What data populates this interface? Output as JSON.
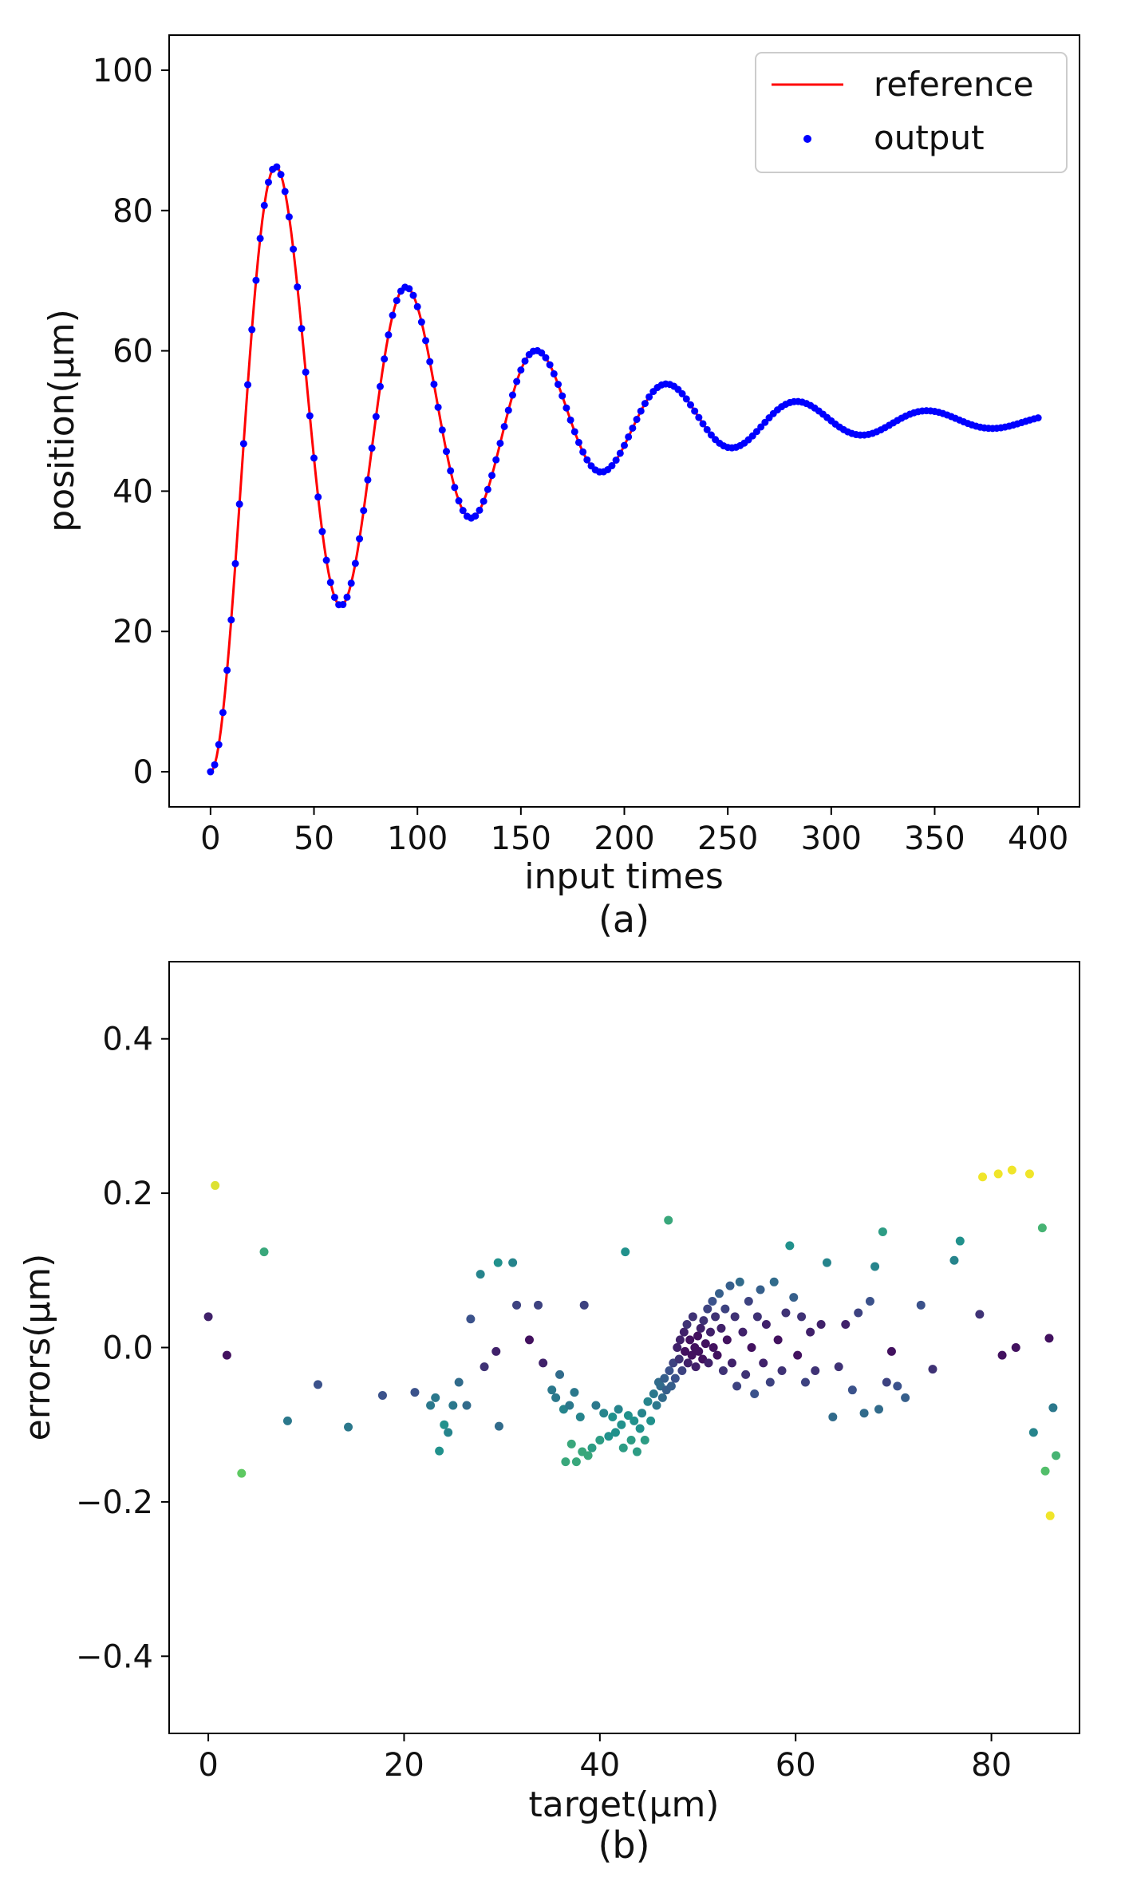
{
  "colors": {
    "reference_line": "#ff0000",
    "output_points": "#0000ff",
    "legend_border": "#cccccc"
  },
  "chart_data": [
    {
      "panel_label": "(a)",
      "type": "line",
      "xlabel": "input times",
      "ylabel": "position(µm)",
      "xlim": [
        -20,
        420
      ],
      "ylim": [
        -5,
        105
      ],
      "xticks": [
        0,
        50,
        100,
        150,
        200,
        250,
        300,
        350,
        400
      ],
      "xtick_labels": [
        "0",
        "50",
        "100",
        "150",
        "200",
        "250",
        "300",
        "350",
        "400"
      ],
      "yticks": [
        0,
        20,
        40,
        60,
        80,
        100
      ],
      "ytick_labels": [
        "0",
        "20",
        "40",
        "60",
        "80",
        "100"
      ],
      "legend": {
        "position": "top-right",
        "entries": [
          "reference",
          "output"
        ]
      },
      "model": {
        "final": 50,
        "amplitude": 50,
        "decay": 0.0102,
        "omega": 0.0998,
        "t_end": 400,
        "step": 2
      },
      "series": [
        {
          "name": "reference",
          "kind": "line",
          "color": "#ff0000"
        },
        {
          "name": "output",
          "kind": "scatter",
          "color": "#0000ff"
        }
      ]
    },
    {
      "panel_label": "(b)",
      "type": "scatter",
      "xlabel": "target(µm)",
      "ylabel": "errors(µm)",
      "xlim": [
        -4,
        89
      ],
      "ylim": [
        -0.5,
        0.5
      ],
      "xticks": [
        0,
        20,
        40,
        60,
        80
      ],
      "xtick_labels": [
        "0",
        "20",
        "40",
        "60",
        "80"
      ],
      "yticks": [
        0.4,
        0.2,
        0.0,
        -0.2,
        -0.4
      ],
      "ytick_labels": [
        "0.4",
        "0.2",
        "0.0",
        "−0.2",
        "−0.4"
      ],
      "colormap": "viridis",
      "points": [
        [
          0.0,
          0.04,
          0.1
        ],
        [
          0.7,
          0.21,
          0.95
        ],
        [
          1.9,
          -0.01,
          0.05
        ],
        [
          3.4,
          -0.163,
          0.75
        ],
        [
          5.7,
          0.124,
          0.6
        ],
        [
          8.1,
          -0.095,
          0.4
        ],
        [
          11.2,
          -0.048,
          0.25
        ],
        [
          14.3,
          -0.103,
          0.4
        ],
        [
          17.8,
          -0.062,
          0.25
        ],
        [
          21.1,
          -0.058,
          0.25
        ],
        [
          22.7,
          -0.075,
          0.4
        ],
        [
          23.2,
          -0.065,
          0.4
        ],
        [
          23.6,
          -0.134,
          0.5
        ],
        [
          24.1,
          -0.1,
          0.5
        ],
        [
          24.5,
          -0.11,
          0.45
        ],
        [
          25.0,
          -0.075,
          0.4
        ],
        [
          25.6,
          -0.045,
          0.35
        ],
        [
          26.4,
          -0.075,
          0.35
        ],
        [
          26.8,
          0.037,
          0.25
        ],
        [
          27.8,
          0.095,
          0.45
        ],
        [
          28.2,
          -0.025,
          0.15
        ],
        [
          29.4,
          -0.005,
          0.1
        ],
        [
          29.6,
          0.11,
          0.5
        ],
        [
          29.7,
          -0.102,
          0.35
        ],
        [
          31.1,
          0.11,
          0.45
        ],
        [
          31.5,
          0.055,
          0.2
        ],
        [
          32.8,
          0.01,
          0.05
        ],
        [
          33.7,
          0.055,
          0.2
        ],
        [
          34.2,
          -0.02,
          0.1
        ],
        [
          35.1,
          -0.055,
          0.4
        ],
        [
          35.5,
          -0.065,
          0.4
        ],
        [
          35.9,
          -0.035,
          0.35
        ],
        [
          36.3,
          -0.08,
          0.45
        ],
        [
          36.5,
          -0.148,
          0.6
        ],
        [
          36.9,
          -0.075,
          0.4
        ],
        [
          37.1,
          -0.125,
          0.6
        ],
        [
          37.4,
          -0.058,
          0.4
        ],
        [
          37.6,
          -0.148,
          0.6
        ],
        [
          38.0,
          -0.09,
          0.45
        ],
        [
          38.2,
          -0.135,
          0.6
        ],
        [
          38.4,
          0.055,
          0.2
        ],
        [
          38.8,
          -0.14,
          0.6
        ],
        [
          39.2,
          -0.13,
          0.55
        ],
        [
          39.6,
          -0.075,
          0.4
        ],
        [
          40.0,
          -0.12,
          0.55
        ],
        [
          40.4,
          -0.085,
          0.45
        ],
        [
          40.9,
          -0.115,
          0.5
        ],
        [
          41.3,
          -0.09,
          0.5
        ],
        [
          41.6,
          -0.11,
          0.5
        ],
        [
          41.9,
          -0.08,
          0.45
        ],
        [
          42.2,
          -0.1,
          0.5
        ],
        [
          42.4,
          -0.13,
          0.55
        ],
        [
          42.6,
          0.124,
          0.5
        ],
        [
          42.9,
          -0.088,
          0.5
        ],
        [
          43.2,
          -0.12,
          0.55
        ],
        [
          43.5,
          -0.095,
          0.5
        ],
        [
          43.8,
          -0.135,
          0.55
        ],
        [
          44.1,
          -0.105,
          0.5
        ],
        [
          44.3,
          -0.085,
          0.45
        ],
        [
          44.6,
          -0.12,
          0.55
        ],
        [
          44.9,
          -0.07,
          0.45
        ],
        [
          45.2,
          -0.095,
          0.5
        ],
        [
          45.5,
          -0.06,
          0.4
        ],
        [
          45.8,
          -0.075,
          0.4
        ],
        [
          46.0,
          -0.045,
          0.35
        ],
        [
          46.2,
          -0.05,
          0.35
        ],
        [
          46.4,
          -0.065,
          0.35
        ],
        [
          46.6,
          -0.04,
          0.3
        ],
        [
          46.8,
          -0.055,
          0.3
        ],
        [
          47.0,
          0.165,
          0.6
        ],
        [
          47.1,
          -0.03,
          0.25
        ],
        [
          47.3,
          -0.05,
          0.3
        ],
        [
          47.5,
          -0.02,
          0.2
        ],
        [
          47.7,
          -0.04,
          0.25
        ],
        [
          47.9,
          0.0,
          0.1
        ],
        [
          48.1,
          -0.015,
          0.15
        ],
        [
          48.2,
          0.01,
          0.1
        ],
        [
          48.4,
          -0.03,
          0.2
        ],
        [
          48.6,
          0.02,
          0.1
        ],
        [
          48.7,
          -0.005,
          0.05
        ],
        [
          48.9,
          0.03,
          0.15
        ],
        [
          49.0,
          -0.02,
          0.1
        ],
        [
          49.2,
          0.01,
          0.05
        ],
        [
          49.4,
          -0.01,
          0.05
        ],
        [
          49.5,
          0.04,
          0.15
        ],
        [
          49.7,
          0.0,
          0.05
        ],
        [
          49.8,
          -0.025,
          0.1
        ],
        [
          50.0,
          0.015,
          0.05
        ],
        [
          50.1,
          -0.005,
          0.05
        ],
        [
          50.3,
          0.025,
          0.1
        ],
        [
          50.5,
          -0.015,
          0.05
        ],
        [
          50.6,
          0.035,
          0.15
        ],
        [
          50.8,
          0.005,
          0.05
        ],
        [
          51.0,
          0.05,
          0.2
        ],
        [
          51.1,
          -0.02,
          0.1
        ],
        [
          51.3,
          0.02,
          0.1
        ],
        [
          51.5,
          0.06,
          0.25
        ],
        [
          51.6,
          0.0,
          0.05
        ],
        [
          51.8,
          0.04,
          0.15
        ],
        [
          52.0,
          -0.01,
          0.05
        ],
        [
          52.2,
          0.07,
          0.3
        ],
        [
          52.4,
          0.025,
          0.1
        ],
        [
          52.6,
          -0.03,
          0.15
        ],
        [
          52.8,
          0.05,
          0.2
        ],
        [
          53.0,
          0.01,
          0.05
        ],
        [
          53.3,
          0.08,
          0.3
        ],
        [
          53.5,
          -0.02,
          0.1
        ],
        [
          53.8,
          0.04,
          0.15
        ],
        [
          54.0,
          -0.05,
          0.2
        ],
        [
          54.3,
          0.085,
          0.35
        ],
        [
          54.6,
          0.02,
          0.1
        ],
        [
          54.9,
          -0.035,
          0.15
        ],
        [
          55.2,
          0.06,
          0.2
        ],
        [
          55.5,
          0.0,
          0.05
        ],
        [
          55.8,
          -0.06,
          0.25
        ],
        [
          56.1,
          0.04,
          0.15
        ],
        [
          56.4,
          0.075,
          0.3
        ],
        [
          56.7,
          -0.02,
          0.1
        ],
        [
          57.0,
          0.03,
          0.1
        ],
        [
          57.4,
          -0.045,
          0.2
        ],
        [
          57.8,
          0.085,
          0.35
        ],
        [
          58.2,
          0.01,
          0.05
        ],
        [
          58.6,
          -0.03,
          0.15
        ],
        [
          59.0,
          0.045,
          0.15
        ],
        [
          59.4,
          0.132,
          0.5
        ],
        [
          59.8,
          0.065,
          0.3
        ],
        [
          60.2,
          -0.01,
          0.05
        ],
        [
          60.6,
          0.04,
          0.15
        ],
        [
          61.0,
          -0.045,
          0.2
        ],
        [
          61.5,
          0.02,
          0.1
        ],
        [
          62.0,
          -0.03,
          0.15
        ],
        [
          62.6,
          0.03,
          0.1
        ],
        [
          63.2,
          0.11,
          0.45
        ],
        [
          63.8,
          -0.09,
          0.35
        ],
        [
          64.4,
          -0.025,
          0.15
        ],
        [
          65.1,
          0.03,
          0.1
        ],
        [
          65.8,
          -0.055,
          0.25
        ],
        [
          66.4,
          0.045,
          0.2
        ],
        [
          67.0,
          -0.085,
          0.35
        ],
        [
          67.6,
          0.06,
          0.25
        ],
        [
          68.1,
          0.105,
          0.45
        ],
        [
          68.5,
          -0.08,
          0.35
        ],
        [
          68.9,
          0.15,
          0.55
        ],
        [
          69.3,
          -0.045,
          0.2
        ],
        [
          69.8,
          -0.005,
          0.05
        ],
        [
          70.4,
          -0.05,
          0.25
        ],
        [
          71.2,
          -0.065,
          0.3
        ],
        [
          72.8,
          0.055,
          0.25
        ],
        [
          74.0,
          -0.028,
          0.15
        ],
        [
          76.2,
          0.113,
          0.45
        ],
        [
          76.8,
          0.138,
          0.5
        ],
        [
          78.8,
          0.043,
          0.15
        ],
        [
          79.1,
          0.221,
          0.98
        ],
        [
          80.7,
          0.225,
          0.98
        ],
        [
          81.1,
          -0.01,
          0.05
        ],
        [
          82.1,
          0.23,
          0.98
        ],
        [
          82.5,
          0.0,
          0.05
        ],
        [
          83.9,
          0.225,
          0.98
        ],
        [
          84.3,
          -0.11,
          0.45
        ],
        [
          85.2,
          0.155,
          0.65
        ],
        [
          85.5,
          -0.16,
          0.7
        ],
        [
          85.9,
          0.012,
          0.05
        ],
        [
          86.0,
          -0.218,
          0.98
        ],
        [
          86.3,
          -0.078,
          0.4
        ],
        [
          86.6,
          -0.14,
          0.65
        ]
      ]
    }
  ]
}
